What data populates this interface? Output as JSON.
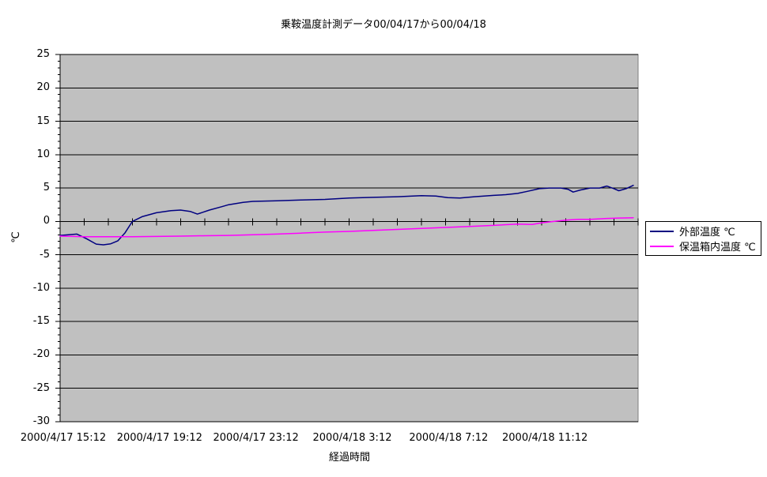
{
  "chart_data": {
    "type": "line",
    "title": "乗鞍温度計測データ00/04/17から00/04/18",
    "xlabel": "経過時間",
    "ylabel": "℃",
    "ylim": [
      -30,
      25
    ],
    "y_ticks": [
      25,
      20,
      15,
      10,
      5,
      0,
      -5,
      -10,
      -15,
      -20,
      -25,
      -30
    ],
    "y_minor_tick_step": 1,
    "x_range_hours": [
      0,
      24
    ],
    "x_minor_tick_hours": 1,
    "x_label_hours": [
      0,
      4,
      8,
      12,
      16,
      20
    ],
    "x_tick_labels": [
      "2000/4/17 15:12",
      "2000/4/17 19:12",
      "2000/4/17 23:12",
      "2000/4/18 3:12",
      "2000/4/18 7:12",
      "2000/4/18 11:12"
    ],
    "grid": true,
    "grid_color": "#000000",
    "plot_bg": "#C0C0C0",
    "plot_border_color": "#808080",
    "axis_color": "#000000",
    "legend_position": "right",
    "series": [
      {
        "name": "外部温度 ℃",
        "color": "#000080",
        "points": [
          [
            0,
            -2.1
          ],
          [
            0.35,
            -2.0
          ],
          [
            0.7,
            -1.9
          ],
          [
            1.1,
            -2.6
          ],
          [
            1.5,
            -3.4
          ],
          [
            1.8,
            -3.5
          ],
          [
            2.1,
            -3.35
          ],
          [
            2.4,
            -2.9
          ],
          [
            2.7,
            -1.7
          ],
          [
            3.0,
            0.0
          ],
          [
            3.4,
            0.7
          ],
          [
            4.0,
            1.3
          ],
          [
            4.6,
            1.6
          ],
          [
            5.0,
            1.7
          ],
          [
            5.4,
            1.5
          ],
          [
            5.7,
            1.1
          ],
          [
            6.2,
            1.7
          ],
          [
            6.7,
            2.2
          ],
          [
            7.0,
            2.5
          ],
          [
            7.6,
            2.85
          ],
          [
            8.0,
            3.0
          ],
          [
            9.0,
            3.1
          ],
          [
            10.0,
            3.2
          ],
          [
            11.0,
            3.3
          ],
          [
            12.0,
            3.5
          ],
          [
            13.0,
            3.6
          ],
          [
            14.0,
            3.7
          ],
          [
            15.0,
            3.85
          ],
          [
            15.6,
            3.8
          ],
          [
            16.1,
            3.55
          ],
          [
            16.6,
            3.5
          ],
          [
            17.2,
            3.7
          ],
          [
            18.0,
            3.9
          ],
          [
            18.5,
            4.0
          ],
          [
            19.0,
            4.2
          ],
          [
            19.4,
            4.5
          ],
          [
            19.9,
            4.9
          ],
          [
            20.3,
            5.0
          ],
          [
            20.8,
            5.0
          ],
          [
            21.1,
            4.8
          ],
          [
            21.3,
            4.4
          ],
          [
            21.6,
            4.7
          ],
          [
            22.0,
            5.0
          ],
          [
            22.4,
            5.0
          ],
          [
            22.7,
            5.3
          ],
          [
            23.0,
            4.9
          ],
          [
            23.2,
            4.6
          ],
          [
            23.5,
            4.9
          ],
          [
            23.8,
            5.4
          ]
        ]
      },
      {
        "name": "保温箱内温度 ℃",
        "color": "#FF00FF",
        "points": [
          [
            0,
            -2.2
          ],
          [
            1,
            -2.3
          ],
          [
            2,
            -2.3
          ],
          [
            3,
            -2.3
          ],
          [
            4,
            -2.25
          ],
          [
            5,
            -2.2
          ],
          [
            6,
            -2.15
          ],
          [
            7,
            -2.1
          ],
          [
            8,
            -2.0
          ],
          [
            9,
            -1.9
          ],
          [
            10,
            -1.75
          ],
          [
            11,
            -1.6
          ],
          [
            12,
            -1.5
          ],
          [
            13,
            -1.35
          ],
          [
            14,
            -1.2
          ],
          [
            15,
            -1.05
          ],
          [
            16,
            -0.9
          ],
          [
            17,
            -0.75
          ],
          [
            18,
            -0.6
          ],
          [
            19,
            -0.4
          ],
          [
            19.6,
            -0.45
          ],
          [
            20,
            -0.2
          ],
          [
            20.5,
            0.0
          ],
          [
            21,
            0.2
          ],
          [
            21.5,
            0.3
          ],
          [
            22,
            0.3
          ],
          [
            22.7,
            0.45
          ],
          [
            23.2,
            0.5
          ],
          [
            23.8,
            0.55
          ]
        ]
      }
    ]
  }
}
